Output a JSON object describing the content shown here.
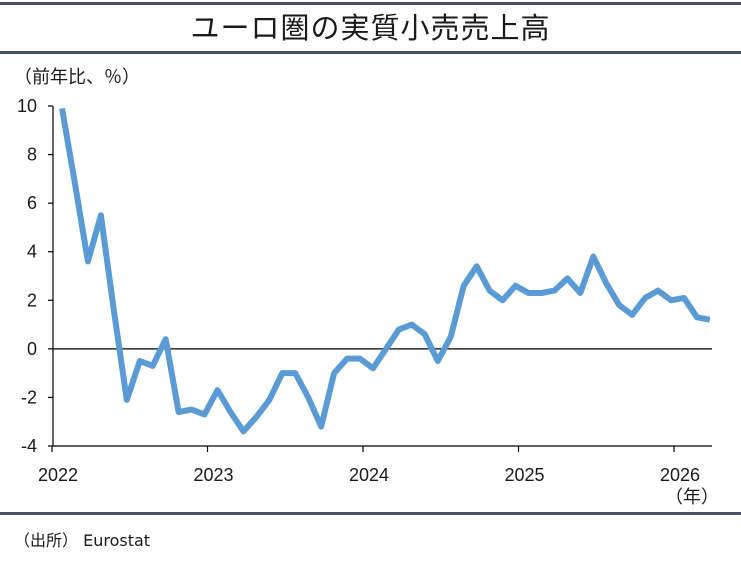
{
  "title": "ユーロ圏の実質小売売上高",
  "unit_label": "（前年比、％）",
  "source_label": "（出所） Eurostat",
  "x_unit_label": "（年）",
  "colors": {
    "line": "#5b9bd5",
    "rule": "#44546a",
    "axis": "#000000"
  },
  "chart_data": {
    "type": "line",
    "title": "ユーロ圏の実質小売売上高",
    "ylabel": "（前年比、％）",
    "xlabel": "（年）",
    "ylim": [
      -4,
      10
    ],
    "yticks": [
      "-4",
      "-2",
      "0",
      "2",
      "4",
      "6",
      "8",
      "10"
    ],
    "xticks": [
      "2022",
      "2023",
      "2024",
      "2025",
      "2026"
    ],
    "grid": false,
    "series": [
      {
        "x": [
          "2022-01",
          "2022-02",
          "2022-03",
          "2022-04",
          "2022-05",
          "2022-06",
          "2022-07",
          "2022-08",
          "2022-09",
          "2022-10",
          "2022-11",
          "2022-12",
          "2023-01",
          "2023-02",
          "2023-03",
          "2023-04",
          "2023-05",
          "2023-06",
          "2023-07",
          "2023-08",
          "2023-09",
          "2023-10",
          "2023-11",
          "2023-12",
          "2024-01",
          "2024-02",
          "2024-03",
          "2024-04",
          "2024-05",
          "2024-06",
          "2024-07",
          "2024-08",
          "2024-09",
          "2024-10",
          "2024-11",
          "2024-12",
          "2025-01",
          "2025-02",
          "2025-03",
          "2025-04",
          "2025-05",
          "2025-06",
          "2025-07",
          "2025-08",
          "2025-09",
          "2025-10",
          "2025-11",
          "2025-12",
          "2026-01",
          "2026-02",
          "2026-03"
        ],
        "values": [
          9.9,
          6.8,
          3.6,
          5.5,
          1.6,
          -2.1,
          -0.5,
          -0.7,
          0.4,
          -2.6,
          -2.5,
          -2.7,
          -1.7,
          -2.6,
          -3.4,
          -2.8,
          -2.1,
          -1.0,
          -1.0,
          -2.0,
          -3.2,
          -1.0,
          -0.4,
          -0.4,
          -0.8,
          0.0,
          0.8,
          1.0,
          0.6,
          -0.5,
          0.5,
          2.6,
          3.4,
          2.4,
          2.0,
          2.6,
          2.3,
          2.3,
          2.4,
          2.9,
          2.3,
          3.8,
          2.7,
          1.8,
          1.4,
          2.1,
          2.4,
          2.0,
          2.1,
          1.3,
          1.2
        ]
      }
    ]
  }
}
